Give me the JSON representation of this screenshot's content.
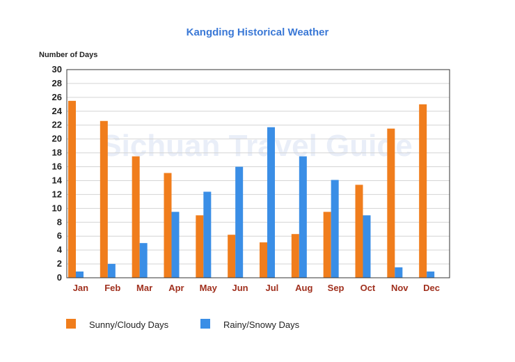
{
  "chart_data": {
    "type": "bar",
    "title": "Kangding Historical Weather",
    "ylabel": "Number of Days",
    "watermark": "Sichuan Travel Guide",
    "categories": [
      "Jan",
      "Feb",
      "Mar",
      "Apr",
      "May",
      "Jun",
      "Jul",
      "Aug",
      "Sep",
      "Oct",
      "Nov",
      "Dec"
    ],
    "series": [
      {
        "name": "Sunny/Cloudy Days",
        "color": "#f07d1c",
        "values": [
          25.5,
          22.6,
          17.5,
          15.1,
          9.0,
          6.2,
          5.1,
          6.3,
          9.5,
          13.4,
          21.5,
          25.0
        ]
      },
      {
        "name": "Rainy/Snowy Days",
        "color": "#3a8ee6",
        "values": [
          0.9,
          2.0,
          5.0,
          9.5,
          12.4,
          16.0,
          21.7,
          17.5,
          14.1,
          9.0,
          1.5,
          0.9
        ]
      }
    ],
    "yticks": [
      "0",
      "2",
      "4",
      "6",
      "8",
      "10",
      "12",
      "14",
      "16",
      "18",
      "20",
      "22",
      "24",
      "26",
      "28",
      "30"
    ],
    "ylim": [
      0,
      30
    ],
    "grid": true,
    "legend": "bottom"
  }
}
